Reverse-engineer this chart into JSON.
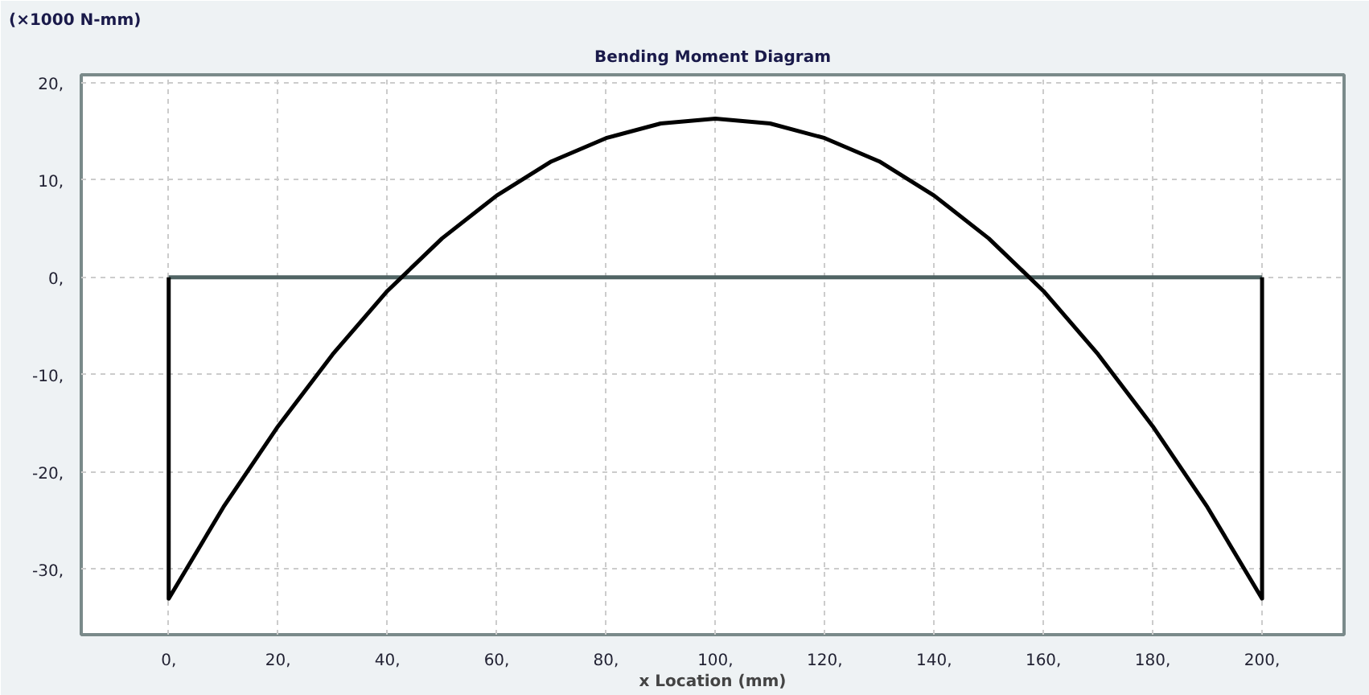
{
  "chart_data": {
    "type": "line",
    "title": "Bending Moment Diagram",
    "xlabel": "x Location (mm)",
    "ylabel": "(×1000 N-mm)",
    "xlim": [
      -16,
      215
    ],
    "ylim": [
      -36.7,
      20.8
    ],
    "xticks": [
      {
        "value": 0,
        "label": "0,"
      },
      {
        "value": 20,
        "label": "20,"
      },
      {
        "value": 40,
        "label": "40,"
      },
      {
        "value": 60,
        "label": "60,"
      },
      {
        "value": 80,
        "label": "80,"
      },
      {
        "value": 100,
        "label": "100,"
      },
      {
        "value": 120,
        "label": "120,"
      },
      {
        "value": 140,
        "label": "140,"
      },
      {
        "value": 160,
        "label": "160,"
      },
      {
        "value": 180,
        "label": "180,"
      },
      {
        "value": 200,
        "label": "200,"
      }
    ],
    "yticks": [
      {
        "value": -30,
        "label": "-30,"
      },
      {
        "value": -20,
        "label": "-20,"
      },
      {
        "value": -10,
        "label": "-10,"
      },
      {
        "value": 0,
        "label": "0,"
      },
      {
        "value": 10,
        "label": "10,"
      },
      {
        "value": 20,
        "label": "20,"
      }
    ],
    "grid": true,
    "marker": "none",
    "line_style": "solid",
    "series": [
      {
        "color": "#506464",
        "x": [
          0,
          200
        ],
        "values": [
          0,
          0
        ]
      },
      {
        "color": "#000000",
        "x": [
          0,
          0,
          10,
          20,
          30,
          40,
          50,
          60,
          70,
          80,
          90,
          100,
          110,
          120,
          130,
          140,
          150,
          160,
          170,
          180,
          190,
          200,
          200
        ],
        "values": [
          0,
          -33,
          -23.6,
          -15.3,
          -7.9,
          -1.4,
          4.0,
          8.4,
          11.9,
          14.3,
          15.8,
          16.3,
          15.8,
          14.3,
          11.9,
          8.4,
          4.0,
          -1.4,
          -7.9,
          -15.3,
          -23.6,
          -33,
          0
        ]
      }
    ]
  }
}
